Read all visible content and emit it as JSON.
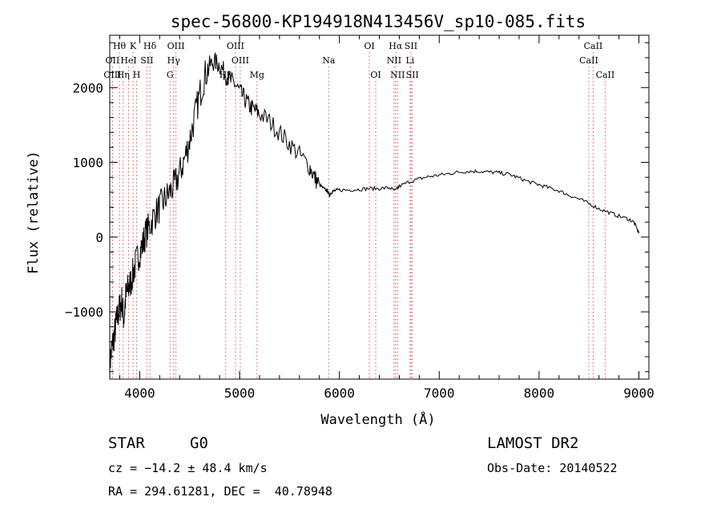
{
  "chart_data": {
    "type": "line",
    "title": "spec-56800-KP194918N413456V_sp10-085.fits",
    "xlabel": "Wavelength (Å)",
    "ylabel": "Flux (relative)",
    "xlim": [
      3700,
      9100
    ],
    "ylim": [
      -1900,
      2700
    ],
    "xticks": [
      4000,
      5000,
      6000,
      7000,
      8000,
      9000
    ],
    "yticks": [
      -1000,
      0,
      1000,
      2000
    ],
    "xtick_labels": [
      "4000",
      "5000",
      "6000",
      "7000",
      "8000",
      "9000"
    ],
    "ytick_labels": [
      "−1000",
      "0",
      "1000",
      "2000"
    ],
    "grid": false,
    "series": [
      {
        "points": [
          [
            3700,
            -1700
          ],
          [
            3720,
            -1500
          ],
          [
            3740,
            -1350
          ],
          [
            3760,
            -1200
          ],
          [
            3780,
            -1050
          ],
          [
            3800,
            -950
          ],
          [
            3820,
            -850
          ],
          [
            3840,
            -1100
          ],
          [
            3860,
            -800
          ],
          [
            3880,
            -700
          ],
          [
            3900,
            -650
          ],
          [
            3930,
            -500
          ],
          [
            3960,
            -350
          ],
          [
            4000,
            -200
          ],
          [
            4030,
            -100
          ],
          [
            4060,
            50
          ],
          [
            4100,
            150
          ],
          [
            4150,
            300
          ],
          [
            4200,
            400
          ],
          [
            4250,
            500
          ],
          [
            4300,
            600
          ],
          [
            4350,
            700
          ],
          [
            4400,
            850
          ],
          [
            4450,
            1050
          ],
          [
            4500,
            1300
          ],
          [
            4550,
            1600
          ],
          [
            4600,
            1900
          ],
          [
            4650,
            2150
          ],
          [
            4700,
            2300
          ],
          [
            4750,
            2350
          ],
          [
            4800,
            2300
          ],
          [
            4850,
            2200
          ],
          [
            4900,
            2100
          ],
          [
            4950,
            2050
          ],
          [
            5000,
            1950
          ],
          [
            5050,
            1850
          ],
          [
            5100,
            1750
          ],
          [
            5150,
            1700
          ],
          [
            5200,
            1650
          ],
          [
            5300,
            1550
          ],
          [
            5400,
            1400
          ],
          [
            5500,
            1250
          ],
          [
            5600,
            1100
          ],
          [
            5700,
            950
          ],
          [
            5750,
            800
          ],
          [
            5800,
            700
          ],
          [
            5850,
            640
          ],
          [
            5880,
            620
          ],
          [
            5900,
            560
          ],
          [
            5920,
            600
          ],
          [
            5950,
            620
          ],
          [
            6000,
            630
          ],
          [
            6100,
            630
          ],
          [
            6200,
            640
          ],
          [
            6300,
            650
          ],
          [
            6400,
            650
          ],
          [
            6500,
            660
          ],
          [
            6560,
            620
          ],
          [
            6600,
            680
          ],
          [
            6700,
            740
          ],
          [
            6800,
            780
          ],
          [
            6900,
            810
          ],
          [
            7000,
            830
          ],
          [
            7100,
            850
          ],
          [
            7200,
            870
          ],
          [
            7300,
            880
          ],
          [
            7400,
            880
          ],
          [
            7500,
            870
          ],
          [
            7600,
            860
          ],
          [
            7700,
            840
          ],
          [
            7800,
            790
          ],
          [
            7900,
            740
          ],
          [
            8000,
            700
          ],
          [
            8100,
            660
          ],
          [
            8200,
            620
          ],
          [
            8300,
            560
          ],
          [
            8400,
            510
          ],
          [
            8500,
            450
          ],
          [
            8600,
            380
          ],
          [
            8700,
            330
          ],
          [
            8800,
            280
          ],
          [
            8900,
            240
          ],
          [
            8950,
            200
          ],
          [
            9000,
            50
          ]
        ]
      }
    ],
    "lines": [
      {
        "label": "Hθ",
        "x": 3797,
        "row": 1
      },
      {
        "label": "K",
        "x": 3934,
        "row": 1
      },
      {
        "label": "Hδ",
        "x": 4102,
        "row": 1
      },
      {
        "label": "OIII",
        "x": 4363,
        "row": 1
      },
      {
        "label": "OIII",
        "x": 4959,
        "row": 1
      },
      {
        "label": "OI",
        "x": 6300,
        "row": 1
      },
      {
        "label": "Hα",
        "x": 6563,
        "row": 1
      },
      {
        "label": "SII",
        "x": 6717,
        "row": 1
      },
      {
        "label": "CaII",
        "x": 8542,
        "row": 1
      },
      {
        "label": "OII",
        "x": 3727,
        "row": 2
      },
      {
        "label": "HeI",
        "x": 3889,
        "row": 2
      },
      {
        "label": "SII",
        "x": 4072,
        "row": 2
      },
      {
        "label": "Hγ",
        "x": 4340,
        "row": 2
      },
      {
        "label": "OIII",
        "x": 5007,
        "row": 2
      },
      {
        "label": "Na",
        "x": 5893,
        "row": 2
      },
      {
        "label": "NII",
        "x": 6548,
        "row": 2
      },
      {
        "label": "Li",
        "x": 6708,
        "row": 2
      },
      {
        "label": "CaII",
        "x": 8498,
        "row": 2
      },
      {
        "label": "OIII",
        "x": 3727,
        "row": 3
      },
      {
        "label": "Hη",
        "x": 3835,
        "row": 3
      },
      {
        "label": "H",
        "x": 3969,
        "row": 3
      },
      {
        "label": "G",
        "x": 4304,
        "row": 3
      },
      {
        "label": "Hβ",
        "x": 4861,
        "row": 3
      },
      {
        "label": "Mg",
        "x": 5175,
        "row": 3
      },
      {
        "label": "OI",
        "x": 6364,
        "row": 3
      },
      {
        "label": "NII",
        "x": 6583,
        "row": 3
      },
      {
        "label": "SII",
        "x": 6731,
        "row": 3
      },
      {
        "label": "CaII",
        "x": 8662,
        "row": 3
      }
    ]
  },
  "info": {
    "class": "STAR",
    "subclass": "G0",
    "survey": "LAMOST DR2",
    "cz": "cz = −14.2 ± 48.4 km/s",
    "obs_date": "Obs-Date: 20140522",
    "radec": "RA = 294.61281, DEC =  40.78948"
  },
  "colors": {
    "marker_lines": "#e05050",
    "axis": "#000000",
    "spectrum": "#000000"
  }
}
